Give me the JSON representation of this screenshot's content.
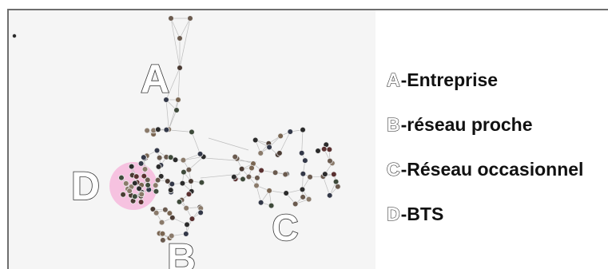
{
  "cluster_labels": {
    "a": "A",
    "b": "B",
    "c": "C",
    "d": "D"
  },
  "legend": [
    {
      "key": "A",
      "text": "-Entreprise"
    },
    {
      "key": "B",
      "text": "-réseau proche"
    },
    {
      "key": "C",
      "text": "-Réseau occasionnel"
    },
    {
      "key": "D",
      "text": "-BTS"
    }
  ],
  "colors": {
    "frame": "#6e6e6e",
    "panel_background": "#f5f5f5",
    "cluster_d_highlight": "#f6b8dc",
    "edge": "#bdbdbd",
    "node": "#2b2b2b"
  }
}
